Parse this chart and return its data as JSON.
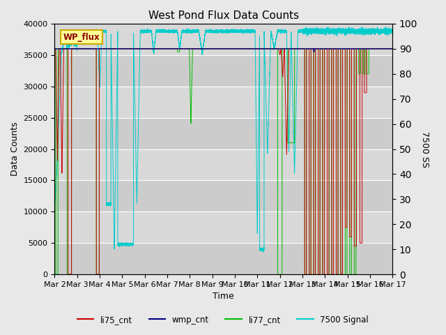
{
  "title": "West Pond Flux Data Counts",
  "xlabel": "Time",
  "ylabel_left": "Data Counts",
  "ylabel_right": "7500 SS",
  "ylim_left": [
    0,
    40000
  ],
  "ylim_right": [
    0,
    100
  ],
  "fig_bg_color": "#e8e8e8",
  "plot_bg_color": "#d4d4d4",
  "line_colors": {
    "li75_cnt": "#cc0000",
    "wmp_cnt": "#000080",
    "li77_cnt": "#00bb00",
    "signal_7500": "#00cccc"
  },
  "legend_label": "WP_flux",
  "legend_box_facecolor": "#ffff99",
  "legend_box_edgecolor": "#ccaa00",
  "x_ticks": [
    2,
    3,
    4,
    5,
    6,
    7,
    8,
    9,
    10,
    11,
    12,
    13,
    14,
    15,
    16,
    17
  ],
  "x_tick_labels": [
    "Mar 2",
    "Mar 3",
    "Mar 4",
    "Mar 5",
    "Mar 6",
    "Mar 7",
    "Mar 8",
    "Mar 9",
    "Mar 10",
    "Mar 11",
    "Mar 12",
    "Mar 13",
    "Mar 14",
    "Mar 15",
    "Mar 16",
    "Mar 17"
  ],
  "yticks_left": [
    0,
    5000,
    10000,
    15000,
    20000,
    25000,
    30000,
    35000,
    40000
  ],
  "yticks_right": [
    0,
    10,
    20,
    30,
    40,
    50,
    60,
    70,
    80,
    90,
    100
  ],
  "baseline_count": 36000,
  "figsize": [
    6.4,
    4.8
  ],
  "dpi": 100
}
